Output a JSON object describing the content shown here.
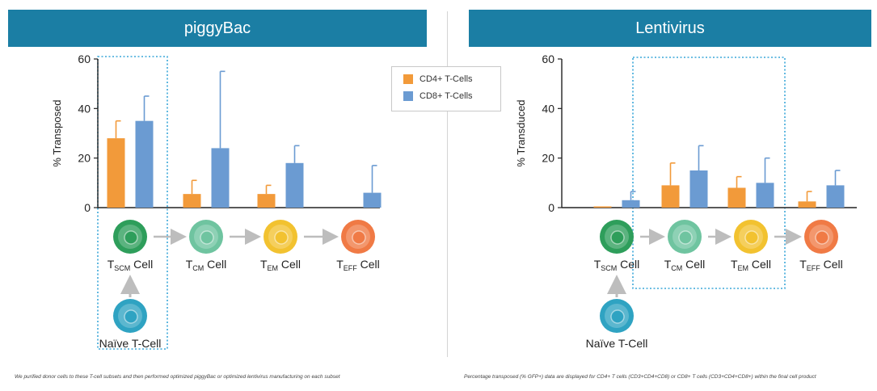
{
  "panels": [
    {
      "title": "piggyBac"
    },
    {
      "title": "Lentivirus"
    }
  ],
  "legend": [
    {
      "label": "CD4+ T-Cells",
      "color": "#f29a3a"
    },
    {
      "label": "CD8+ T-Cells",
      "color": "#6b9bd2"
    }
  ],
  "footnotes": {
    "left": "We purified donor cells to these T-cell subsets and then performed optimized piggyBac or optimized lentivirus manufacturing on each subset",
    "right": "Percentage transposed (% GFP+) data are displayed for CD4+ T cells (CD3+CD4+CD8) or CD8+ T cells (CD3+CD4+CD8+) within the final cell product"
  },
  "cells": {
    "naive_label": "Naïve T-Cell",
    "cell_word": "Cell",
    "prefix": "T",
    "subscripts": [
      "SCM",
      "CM",
      "EM",
      "EFF"
    ],
    "colors": {
      "scm": "#2e9e5b",
      "cm": "#6fc4a0",
      "em": "#f2c230",
      "eff": "#f07a45",
      "naive": "#2fa3c2"
    }
  },
  "chart_data": [
    {
      "type": "bar",
      "ylabel": "% Transposed",
      "ylim": [
        0,
        60
      ],
      "yticks": [
        0,
        20,
        40,
        60
      ],
      "categories": [
        "TSCM Cell",
        "TCM Cell",
        "TEM Cell",
        "TEFF Cell"
      ],
      "series": [
        {
          "name": "CD4+ T-Cells",
          "values": [
            28,
            5.5,
            5.5,
            0
          ],
          "errors": [
            7,
            5.5,
            3.5,
            0
          ]
        },
        {
          "name": "CD8+ T-Cells",
          "values": [
            35,
            24,
            18,
            6
          ],
          "errors": [
            10,
            31,
            7,
            11
          ]
        }
      ],
      "grid": false,
      "highlight": [
        "TSCM Cell"
      ]
    },
    {
      "type": "bar",
      "ylabel": "% Transduced",
      "ylim": [
        0,
        60
      ],
      "yticks": [
        0,
        20,
        40,
        60
      ],
      "categories": [
        "TSCM Cell",
        "TCM Cell",
        "TEM Cell",
        "TEFF Cell"
      ],
      "series": [
        {
          "name": "CD4+ T-Cells",
          "values": [
            0.5,
            9,
            8,
            2.5
          ],
          "errors": [
            0,
            9,
            4.5,
            4
          ]
        },
        {
          "name": "CD8+ T-Cells",
          "values": [
            3,
            15,
            10,
            9
          ],
          "errors": [
            3.5,
            10,
            10,
            6
          ]
        }
      ],
      "grid": false,
      "highlight": [
        "TCM Cell",
        "TEM Cell"
      ]
    }
  ]
}
